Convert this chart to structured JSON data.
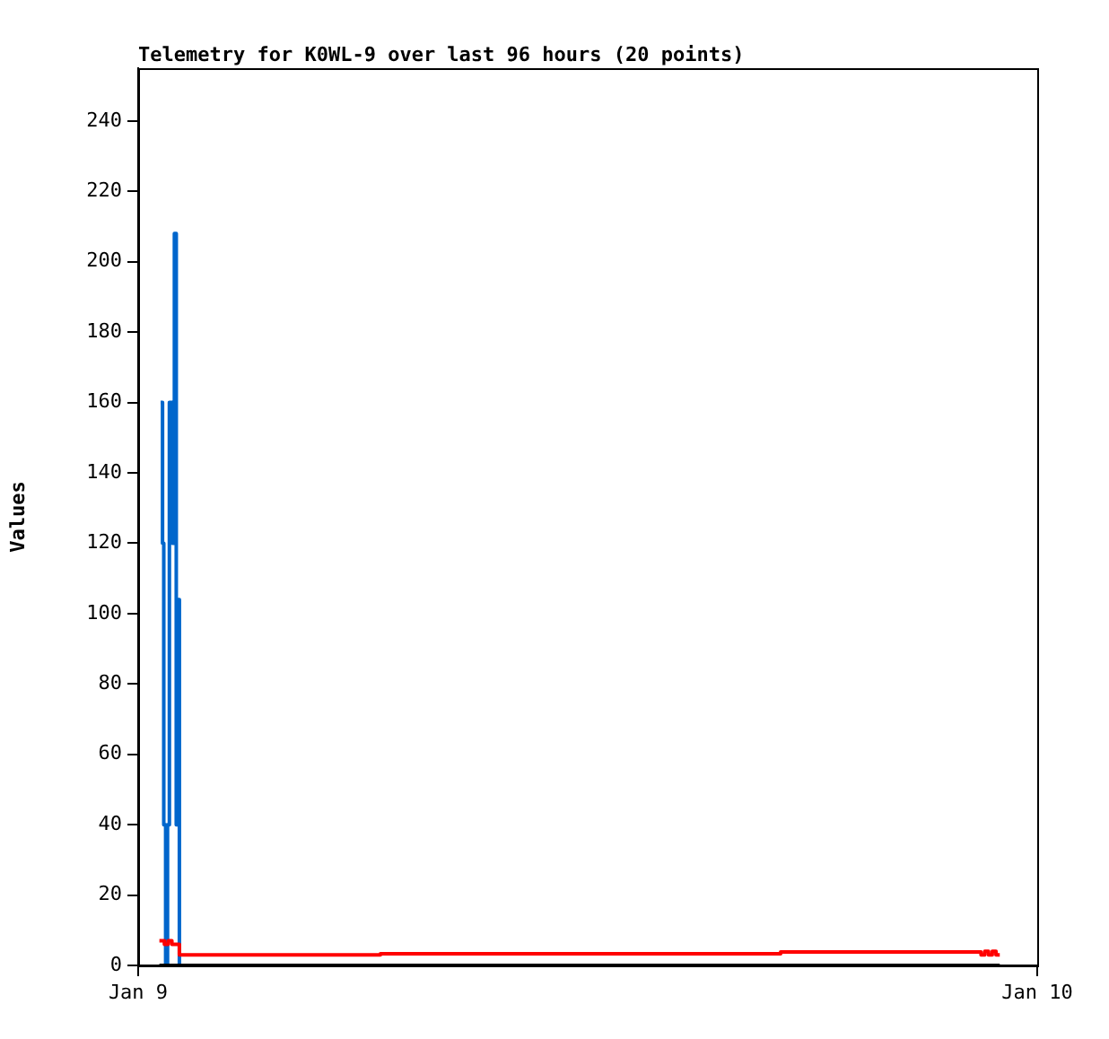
{
  "chart_data": {
    "type": "step",
    "title": "Telemetry for K0WL-9 over last 96 hours (20 points)",
    "ylabel": "Values",
    "xlim": [
      "--01-09",
      "--01-10"
    ],
    "xticks": [
      {
        "value": "--01-09",
        "label": "Jan 9"
      },
      {
        "value": "--01-10",
        "label": "Jan 10"
      }
    ],
    "ylim": [
      0,
      255
    ],
    "yticks": [
      0,
      20,
      40,
      60,
      80,
      100,
      120,
      140,
      160,
      180,
      200,
      220,
      240
    ],
    "grid": false,
    "legend": false,
    "marker": "none",
    "line_style": "solid",
    "series": [
      {
        "color": "#000000",
        "x": [
          "--01-09T00:34",
          "--01-09T23:00"
        ],
        "values": [
          0,
          0
        ]
      },
      {
        "color": "#ff0000",
        "x": [
          "--01-09T00:34",
          "--01-09T00:42",
          "--01-09T00:48",
          "--01-09T00:54",
          "--01-09T01:03",
          "--01-09T01:06",
          "--01-09T06:28",
          "--01-09T17:09",
          "--01-09T22:30",
          "--01-09T22:36",
          "--01-09T22:42",
          "--01-09T22:48",
          "--01-09T22:54",
          "--01-09T23:00"
        ],
        "values": [
          7,
          6,
          7,
          6,
          6,
          3,
          3.3,
          3.8,
          3,
          4,
          3,
          4,
          3,
          3
        ]
      },
      {
        "color": "#0066cc",
        "x": [
          "--01-09T00:36",
          "--01-09T00:39",
          "--01-09T00:41",
          "--01-09T00:44",
          "--01-09T00:47",
          "--01-09T00:50",
          "--01-09T00:55",
          "--01-09T00:58",
          "--01-09T01:01",
          "--01-09T01:03",
          "--01-09T01:06"
        ],
        "values": [
          160,
          120,
          40,
          0,
          40,
          160,
          120,
          208,
          40,
          104,
          0
        ]
      }
    ]
  }
}
